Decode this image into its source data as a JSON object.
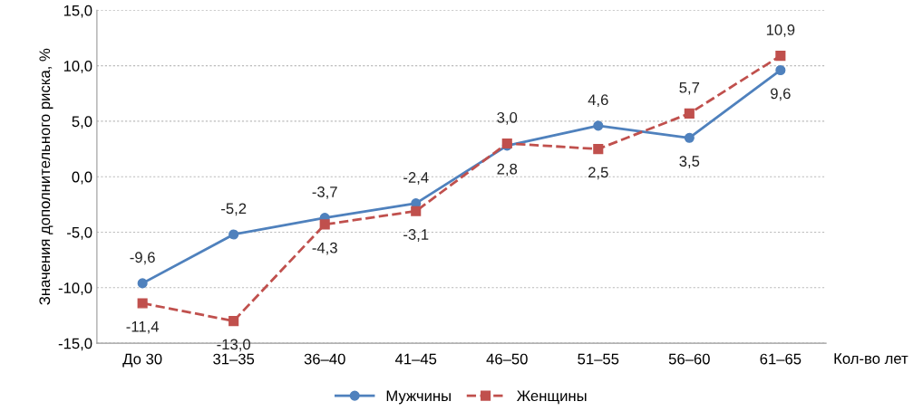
{
  "chart_data": {
    "type": "line",
    "ylabel": "Значения дополнительного риска, %",
    "xlabel": "Кол-во лет",
    "categories": [
      "До 30",
      "31–35",
      "36–40",
      "41–45",
      "46–50",
      "51–55",
      "56–60",
      "61–65"
    ],
    "series": [
      {
        "name": "Мужчины",
        "color": "#4f81bd",
        "marker": "circle",
        "line_style": "solid",
        "values": [
          -9.6,
          -5.2,
          -3.7,
          -2.4,
          2.8,
          4.6,
          3.5,
          9.6
        ],
        "value_labels": [
          "-9,6",
          "-5,2",
          "-3,7",
          "-2,4",
          "2,8",
          "4,6",
          "3,5",
          "9,6"
        ]
      },
      {
        "name": "Женщины",
        "color": "#c0504d",
        "marker": "square",
        "line_style": "dashed",
        "values": [
          -11.4,
          -13.0,
          -4.3,
          -3.1,
          3.0,
          2.5,
          5.7,
          10.9
        ],
        "value_labels": [
          "-11,4",
          "-13,0",
          "-4,3",
          "-3,1",
          "3,0",
          "2,5",
          "5,7",
          "10,9"
        ]
      }
    ],
    "ylim": [
      -15,
      15
    ],
    "yticks": [
      {
        "value": -15,
        "label": "-15,0"
      },
      {
        "value": -10,
        "label": "-10,0"
      },
      {
        "value": -5,
        "label": "-5,0"
      },
      {
        "value": 0,
        "label": "0,0"
      },
      {
        "value": 5,
        "label": "5,0"
      },
      {
        "value": 10,
        "label": "10,0"
      },
      {
        "value": 15,
        "label": "15,0"
      }
    ],
    "grid": "y",
    "legend": "bottom"
  }
}
